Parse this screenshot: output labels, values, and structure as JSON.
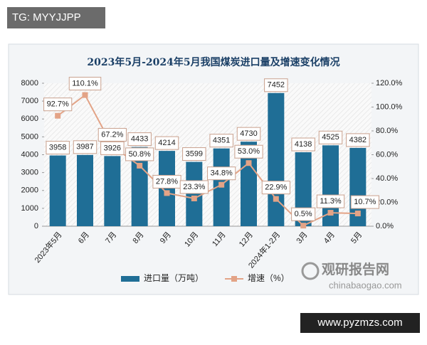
{
  "watermark_top": "TG: MYYJJPP",
  "watermark_bottom": "www.pyzmzs.com",
  "logo": {
    "name": "观研报告网",
    "url": "chinabaogao.com"
  },
  "chart_data": {
    "type": "combo",
    "title": "2023年5月-2024年5月我国煤炭进口量及增速变化情况",
    "categories": [
      "2023年5月",
      "6月",
      "7月",
      "8月",
      "9月",
      "10月",
      "11月",
      "12月",
      "2024年1-2月",
      "3月",
      "4月",
      "5月"
    ],
    "series": [
      {
        "name": "进口量（万吨）",
        "type": "bar",
        "color": "#1f6e96",
        "values": [
          3958,
          3987,
          3926,
          4433,
          4214,
          3599,
          4351,
          4730,
          7452,
          4138,
          4525,
          4382
        ]
      },
      {
        "name": "增速（%）",
        "type": "line",
        "axis": "y2",
        "color": "#e3a386",
        "values": [
          92.7,
          110.1,
          67.2,
          50.8,
          27.8,
          23.3,
          34.8,
          53.0,
          22.9,
          0.5,
          11.3,
          10.7
        ],
        "value_labels": [
          "92.7%",
          "110.1%",
          "67.2%",
          "50.8%",
          "27.8%",
          "23.3%",
          "34.8%",
          "53.0%",
          "22.9%",
          "0.5%",
          "11.3%",
          "10.7%"
        ]
      }
    ],
    "ylim": [
      0,
      8000
    ],
    "yticks": [
      0,
      1000,
      2000,
      3000,
      4000,
      5000,
      6000,
      7000,
      8000
    ],
    "y2lim": [
      0,
      120
    ],
    "y2ticks": [
      {
        "value": 0,
        "label": "0.0%"
      },
      {
        "value": 20,
        "label": "20.0%"
      },
      {
        "value": 40,
        "label": "40.0%"
      },
      {
        "value": 60,
        "label": "60.0%"
      },
      {
        "value": 80,
        "label": "80.0%"
      },
      {
        "value": 100,
        "label": "100.0%"
      },
      {
        "value": 120,
        "label": "120.0%"
      }
    ],
    "legend": "bottom"
  }
}
